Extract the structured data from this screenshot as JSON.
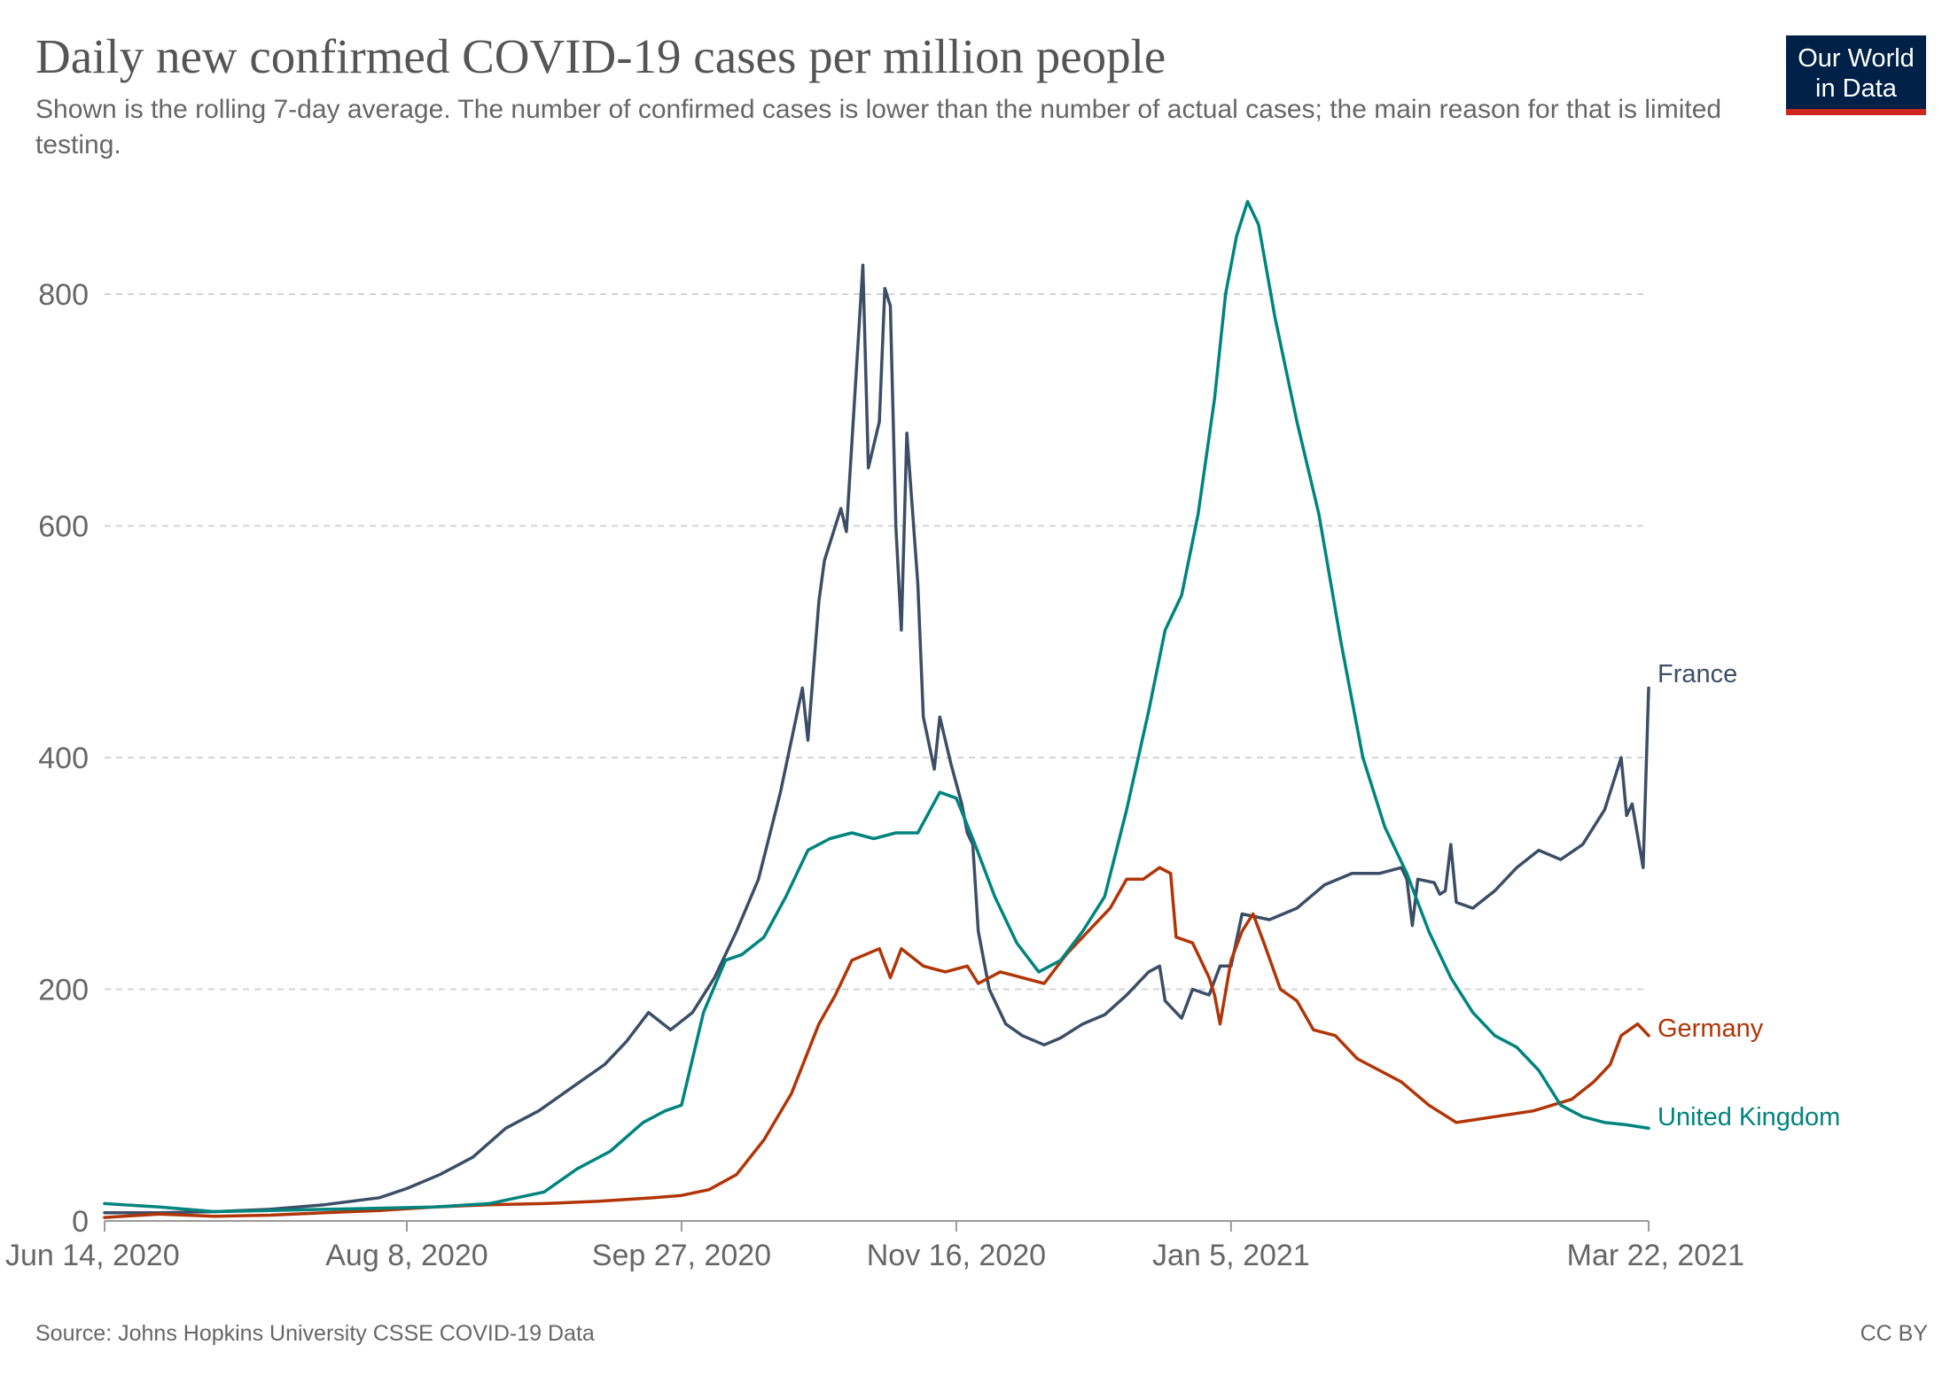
{
  "chart_data": {
    "type": "line",
    "title": "Daily new confirmed COVID-19 cases per million people",
    "subtitle": "Shown is the rolling 7-day average. The number of confirmed cases is lower than the number of actual cases; the main reason for that is limited testing.",
    "x_tick_labels": [
      "Jun 14, 2020",
      "Aug 8, 2020",
      "Sep 27, 2020",
      "Nov 16, 2020",
      "Jan 5, 2021",
      "Mar 22, 2021"
    ],
    "x_tick_dates": [
      "2020-06-14",
      "2020-08-08",
      "2020-09-27",
      "2020-11-16",
      "2021-01-05",
      "2021-03-22"
    ],
    "xlim": [
      "2020-06-14",
      "2021-03-22"
    ],
    "ylim": [
      0,
      880
    ],
    "y_ticks": [
      0,
      200,
      400,
      600,
      800
    ],
    "y_tick_labels": [
      "0",
      "200",
      "400",
      "600",
      "800"
    ],
    "grid": "horizontal dashed",
    "legend": "labels at line ends",
    "series": [
      {
        "name": "France",
        "color": "#3c4e66",
        "points": [
          [
            "2020-06-14",
            7
          ],
          [
            "2020-06-24",
            7
          ],
          [
            "2020-07-04",
            8
          ],
          [
            "2020-07-14",
            10
          ],
          [
            "2020-07-24",
            14
          ],
          [
            "2020-08-03",
            20
          ],
          [
            "2020-08-08",
            28
          ],
          [
            "2020-08-14",
            40
          ],
          [
            "2020-08-20",
            55
          ],
          [
            "2020-08-26",
            80
          ],
          [
            "2020-09-01",
            95
          ],
          [
            "2020-09-07",
            115
          ],
          [
            "2020-09-13",
            135
          ],
          [
            "2020-09-17",
            155
          ],
          [
            "2020-09-21",
            180
          ],
          [
            "2020-09-25",
            165
          ],
          [
            "2020-09-29",
            180
          ],
          [
            "2020-10-03",
            210
          ],
          [
            "2020-10-07",
            250
          ],
          [
            "2020-10-11",
            295
          ],
          [
            "2020-10-15",
            370
          ],
          [
            "2020-10-19",
            460
          ],
          [
            "2020-10-20",
            415
          ],
          [
            "2020-10-22",
            535
          ],
          [
            "2020-10-23",
            570
          ],
          [
            "2020-10-26",
            615
          ],
          [
            "2020-10-27",
            595
          ],
          [
            "2020-10-30",
            825
          ],
          [
            "2020-10-31",
            650
          ],
          [
            "2020-11-02",
            690
          ],
          [
            "2020-11-03",
            805
          ],
          [
            "2020-11-04",
            790
          ],
          [
            "2020-11-05",
            600
          ],
          [
            "2020-11-06",
            510
          ],
          [
            "2020-11-07",
            680
          ],
          [
            "2020-11-09",
            550
          ],
          [
            "2020-11-10",
            435
          ],
          [
            "2020-11-12",
            390
          ],
          [
            "2020-11-13",
            435
          ],
          [
            "2020-11-15",
            395
          ],
          [
            "2020-11-17",
            360
          ],
          [
            "2020-11-18",
            335
          ],
          [
            "2020-11-19",
            325
          ],
          [
            "2020-11-20",
            250
          ],
          [
            "2020-11-22",
            200
          ],
          [
            "2020-11-25",
            170
          ],
          [
            "2020-11-28",
            160
          ],
          [
            "2020-12-02",
            152
          ],
          [
            "2020-12-05",
            158
          ],
          [
            "2020-12-09",
            170
          ],
          [
            "2020-12-13",
            178
          ],
          [
            "2020-12-17",
            195
          ],
          [
            "2020-12-21",
            215
          ],
          [
            "2020-12-23",
            220
          ],
          [
            "2020-12-24",
            190
          ],
          [
            "2020-12-27",
            175
          ],
          [
            "2020-12-29",
            200
          ],
          [
            "2021-01-01",
            195
          ],
          [
            "2021-01-03",
            220
          ],
          [
            "2021-01-05",
            220
          ],
          [
            "2021-01-07",
            265
          ],
          [
            "2021-01-12",
            260
          ],
          [
            "2021-01-17",
            270
          ],
          [
            "2021-01-22",
            290
          ],
          [
            "2021-01-27",
            300
          ],
          [
            "2021-02-01",
            300
          ],
          [
            "2021-02-05",
            305
          ],
          [
            "2021-02-06",
            295
          ],
          [
            "2021-02-07",
            255
          ],
          [
            "2021-02-08",
            295
          ],
          [
            "2021-02-11",
            292
          ],
          [
            "2021-02-12",
            282
          ],
          [
            "2021-02-13",
            285
          ],
          [
            "2021-02-14",
            325
          ],
          [
            "2021-02-15",
            275
          ],
          [
            "2021-02-18",
            270
          ],
          [
            "2021-02-22",
            285
          ],
          [
            "2021-02-26",
            305
          ],
          [
            "2021-03-02",
            320
          ],
          [
            "2021-03-06",
            312
          ],
          [
            "2021-03-10",
            325
          ],
          [
            "2021-03-14",
            355
          ],
          [
            "2021-03-17",
            400
          ],
          [
            "2021-03-18",
            350
          ],
          [
            "2021-03-19",
            360
          ],
          [
            "2021-03-21",
            305
          ],
          [
            "2021-03-22",
            460
          ]
        ]
      },
      {
        "name": "Germany",
        "color": "#b13507",
        "points": [
          [
            "2020-06-14",
            3
          ],
          [
            "2020-06-24",
            6
          ],
          [
            "2020-07-04",
            4
          ],
          [
            "2020-07-14",
            5
          ],
          [
            "2020-07-24",
            7
          ],
          [
            "2020-08-03",
            9
          ],
          [
            "2020-08-13",
            12
          ],
          [
            "2020-08-23",
            14
          ],
          [
            "2020-09-02",
            15
          ],
          [
            "2020-09-12",
            17
          ],
          [
            "2020-09-22",
            20
          ],
          [
            "2020-09-27",
            22
          ],
          [
            "2020-10-02",
            27
          ],
          [
            "2020-10-07",
            40
          ],
          [
            "2020-10-12",
            70
          ],
          [
            "2020-10-17",
            110
          ],
          [
            "2020-10-22",
            170
          ],
          [
            "2020-10-25",
            195
          ],
          [
            "2020-10-28",
            225
          ],
          [
            "2020-11-02",
            235
          ],
          [
            "2020-11-04",
            210
          ],
          [
            "2020-11-06",
            235
          ],
          [
            "2020-11-10",
            220
          ],
          [
            "2020-11-14",
            215
          ],
          [
            "2020-11-18",
            220
          ],
          [
            "2020-11-20",
            205
          ],
          [
            "2020-11-24",
            215
          ],
          [
            "2020-11-28",
            210
          ],
          [
            "2020-12-02",
            205
          ],
          [
            "2020-12-06",
            230
          ],
          [
            "2020-12-10",
            250
          ],
          [
            "2020-12-14",
            270
          ],
          [
            "2020-12-17",
            295
          ],
          [
            "2020-12-20",
            295
          ],
          [
            "2020-12-23",
            305
          ],
          [
            "2020-12-25",
            300
          ],
          [
            "2020-12-26",
            245
          ],
          [
            "2020-12-29",
            240
          ],
          [
            "2021-01-01",
            210
          ],
          [
            "2021-01-02",
            195
          ],
          [
            "2021-01-03",
            170
          ],
          [
            "2021-01-05",
            225
          ],
          [
            "2021-01-07",
            250
          ],
          [
            "2021-01-09",
            265
          ],
          [
            "2021-01-11",
            240
          ],
          [
            "2021-01-14",
            200
          ],
          [
            "2021-01-17",
            190
          ],
          [
            "2021-01-20",
            165
          ],
          [
            "2021-01-24",
            160
          ],
          [
            "2021-01-28",
            140
          ],
          [
            "2021-02-01",
            130
          ],
          [
            "2021-02-05",
            120
          ],
          [
            "2021-02-10",
            100
          ],
          [
            "2021-02-15",
            85
          ],
          [
            "2021-02-22",
            90
          ],
          [
            "2021-03-01",
            95
          ],
          [
            "2021-03-08",
            105
          ],
          [
            "2021-03-12",
            120
          ],
          [
            "2021-03-15",
            135
          ],
          [
            "2021-03-17",
            160
          ],
          [
            "2021-03-20",
            170
          ],
          [
            "2021-03-22",
            160
          ]
        ]
      },
      {
        "name": "United Kingdom",
        "color": "#00847e",
        "points": [
          [
            "2020-06-14",
            15
          ],
          [
            "2020-06-24",
            12
          ],
          [
            "2020-07-04",
            8
          ],
          [
            "2020-07-14",
            9
          ],
          [
            "2020-07-24",
            10
          ],
          [
            "2020-08-03",
            11
          ],
          [
            "2020-08-13",
            12
          ],
          [
            "2020-08-23",
            15
          ],
          [
            "2020-09-02",
            25
          ],
          [
            "2020-09-08",
            45
          ],
          [
            "2020-09-14",
            60
          ],
          [
            "2020-09-20",
            85
          ],
          [
            "2020-09-24",
            95
          ],
          [
            "2020-09-27",
            100
          ],
          [
            "2020-10-01",
            180
          ],
          [
            "2020-10-05",
            225
          ],
          [
            "2020-10-08",
            230
          ],
          [
            "2020-10-12",
            245
          ],
          [
            "2020-10-16",
            280
          ],
          [
            "2020-10-20",
            320
          ],
          [
            "2020-10-24",
            330
          ],
          [
            "2020-10-28",
            335
          ],
          [
            "2020-11-01",
            330
          ],
          [
            "2020-11-05",
            335
          ],
          [
            "2020-11-09",
            335
          ],
          [
            "2020-11-13",
            370
          ],
          [
            "2020-11-16",
            365
          ],
          [
            "2020-11-19",
            330
          ],
          [
            "2020-11-23",
            280
          ],
          [
            "2020-11-27",
            240
          ],
          [
            "2020-12-01",
            215
          ],
          [
            "2020-12-05",
            225
          ],
          [
            "2020-12-09",
            250
          ],
          [
            "2020-12-13",
            280
          ],
          [
            "2020-12-17",
            355
          ],
          [
            "2020-12-21",
            440
          ],
          [
            "2020-12-24",
            510
          ],
          [
            "2020-12-27",
            540
          ],
          [
            "2020-12-30",
            610
          ],
          [
            "2021-01-02",
            710
          ],
          [
            "2021-01-04",
            800
          ],
          [
            "2021-01-06",
            850
          ],
          [
            "2021-01-08",
            880
          ],
          [
            "2021-01-10",
            860
          ],
          [
            "2021-01-13",
            780
          ],
          [
            "2021-01-17",
            690
          ],
          [
            "2021-01-21",
            610
          ],
          [
            "2021-01-25",
            500
          ],
          [
            "2021-01-29",
            400
          ],
          [
            "2021-02-02",
            340
          ],
          [
            "2021-02-06",
            300
          ],
          [
            "2021-02-10",
            250
          ],
          [
            "2021-02-14",
            210
          ],
          [
            "2021-02-18",
            180
          ],
          [
            "2021-02-22",
            160
          ],
          [
            "2021-02-26",
            150
          ],
          [
            "2021-03-02",
            130
          ],
          [
            "2021-03-06",
            100
          ],
          [
            "2021-03-10",
            90
          ],
          [
            "2021-03-14",
            85
          ],
          [
            "2021-03-18",
            83
          ],
          [
            "2021-03-22",
            80
          ]
        ]
      }
    ]
  },
  "branding": {
    "line1": "Our World",
    "line2": "in Data"
  },
  "footer": {
    "source": "Source: Johns Hopkins University CSSE COVID-19 Data",
    "license": "CC BY"
  }
}
